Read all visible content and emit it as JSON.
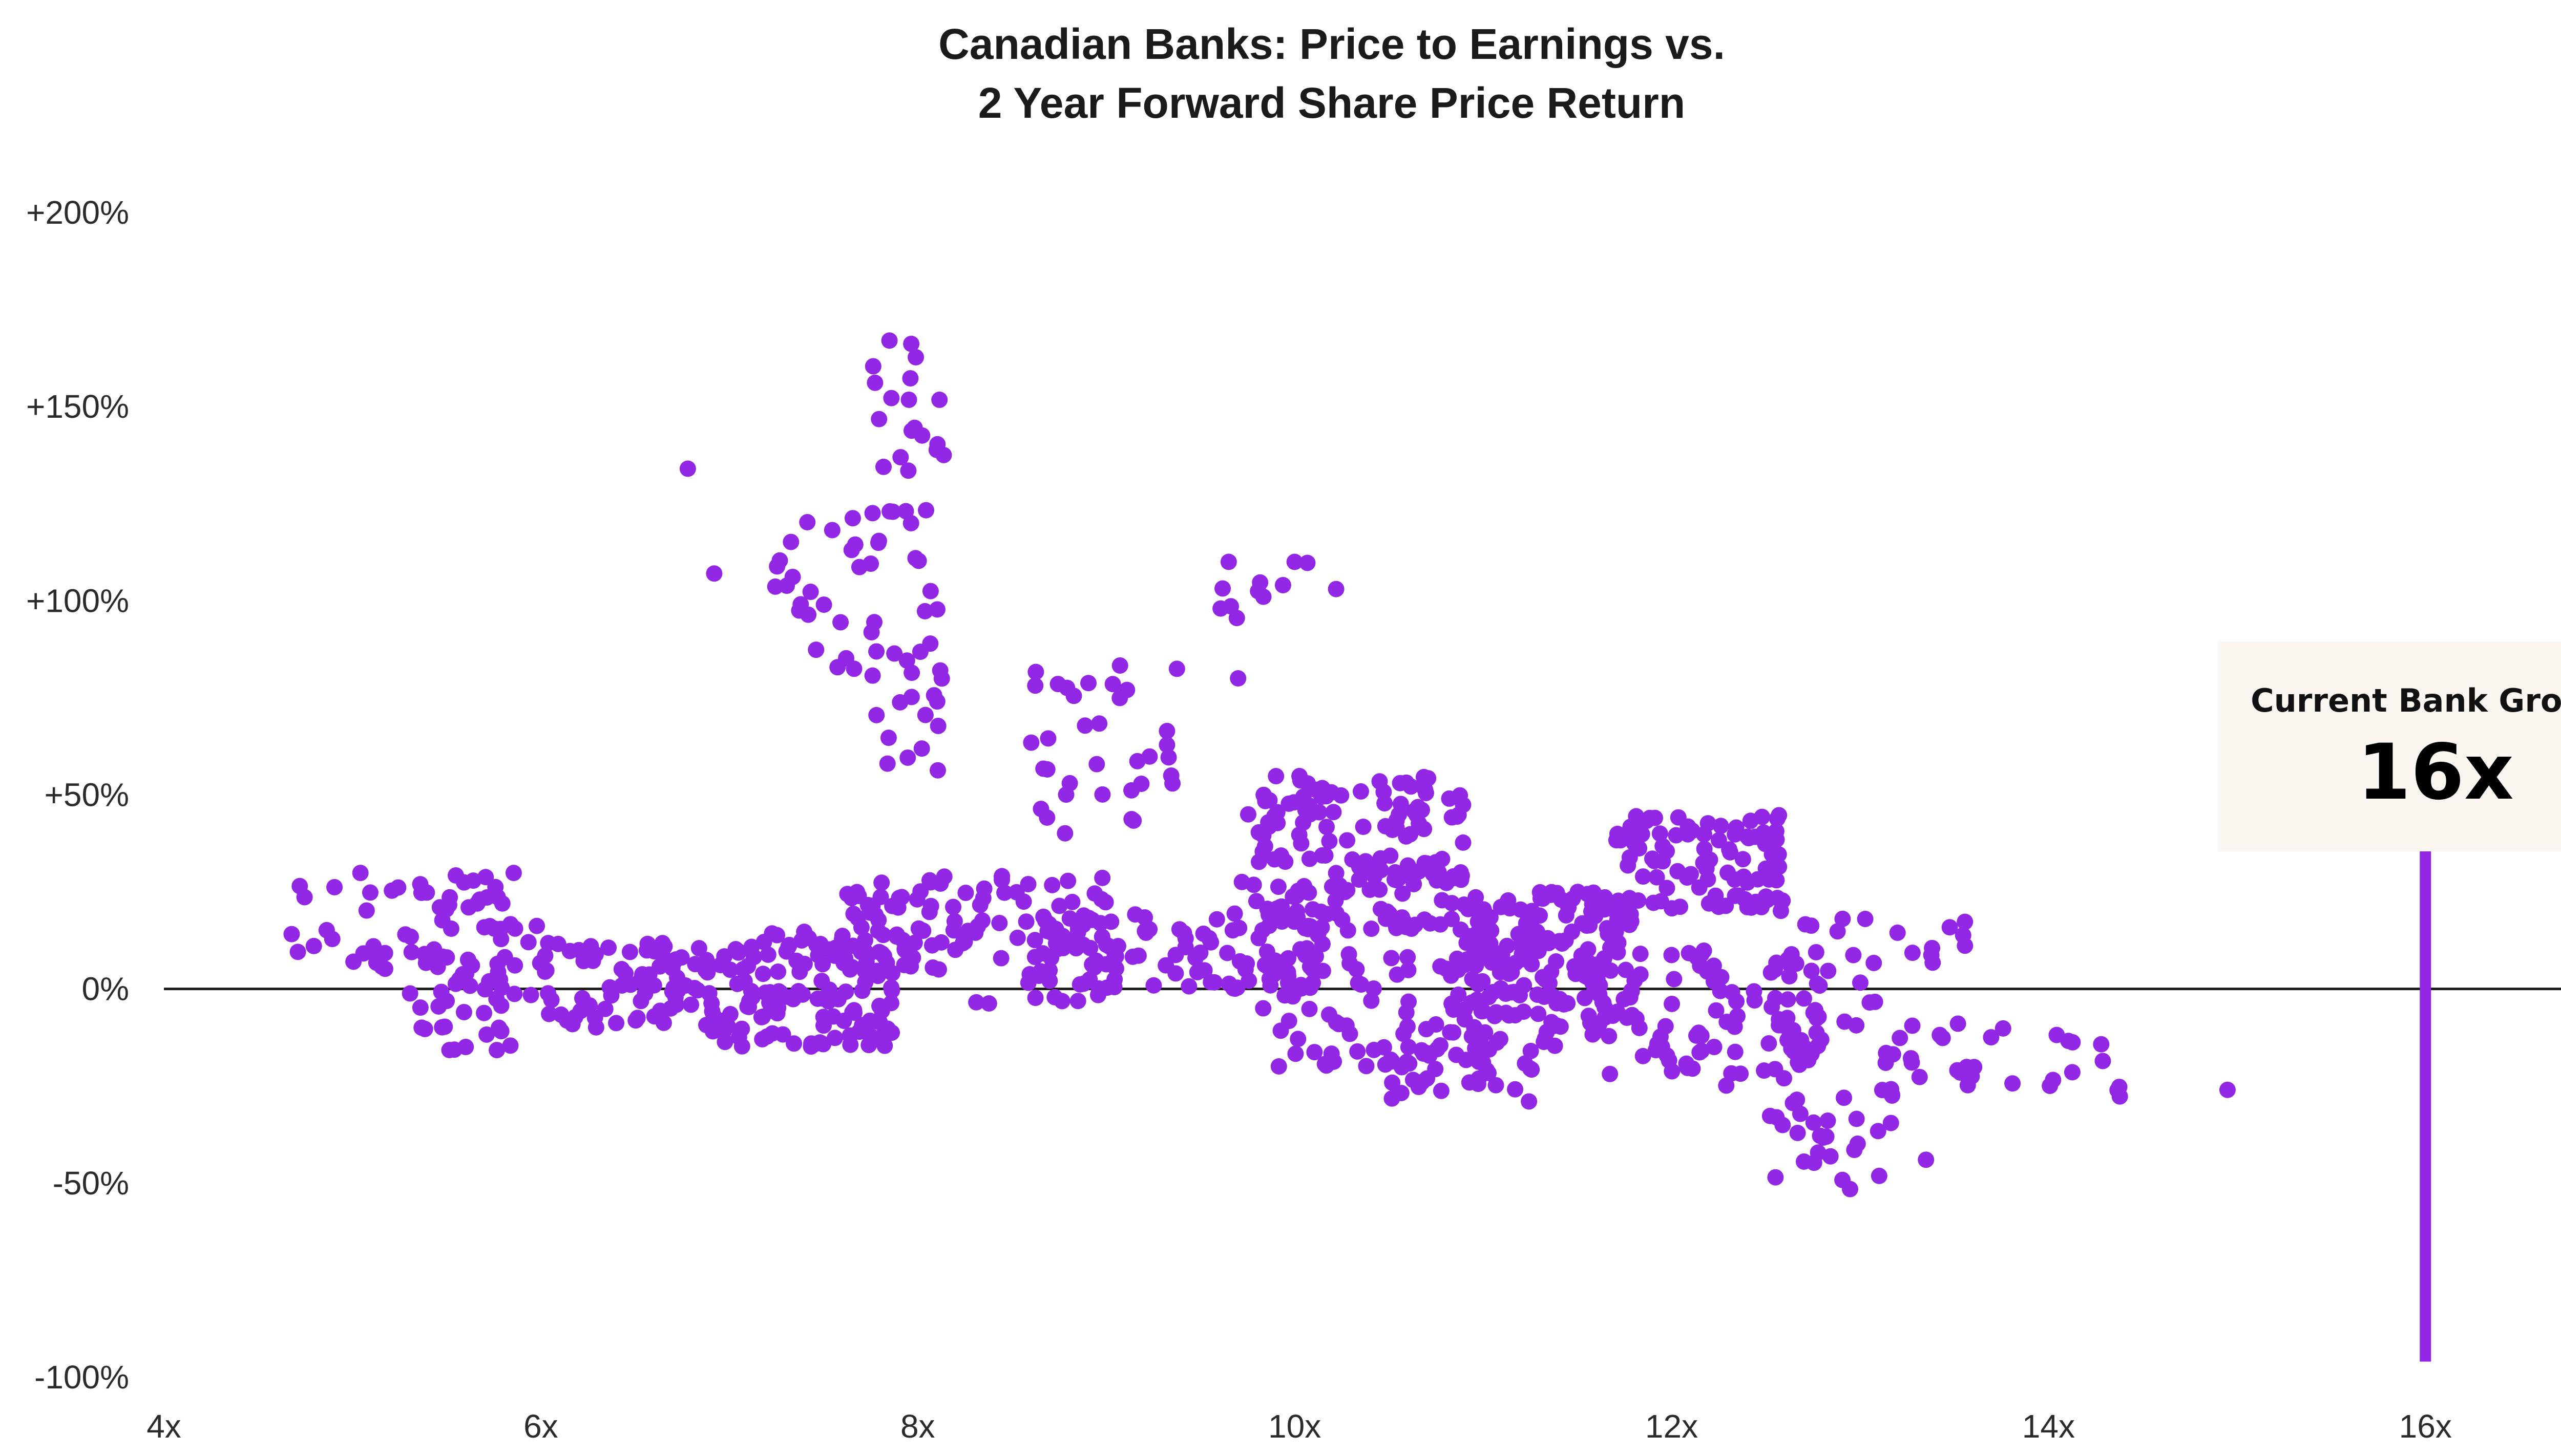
{
  "chart_data": {
    "type": "scatter",
    "title": [
      "Canadian Banks: Price to Earnings vs.",
      "2 Year Forward Share Price Return"
    ],
    "xlabel": "",
    "ylabel": "",
    "xlim": [
      4,
      17.1
    ],
    "ylim": [
      -100,
      200
    ],
    "x_ticks": [
      4,
      6,
      8,
      10,
      12,
      14,
      16
    ],
    "x_tick_labels": [
      "4x",
      "6x",
      "8x",
      "10x",
      "12x",
      "14x",
      "16x"
    ],
    "y_ticks": [
      200,
      150,
      100,
      50,
      0,
      -50,
      -100
    ],
    "y_tick_labels": [
      "+200%",
      "+150%",
      "+100%",
      "+50%",
      "0%",
      "-50%",
      "-100%"
    ],
    "grid": false,
    "zero_line": true,
    "point_color": "#9327E6",
    "reference_line": {
      "x": 16,
      "y_from": -96,
      "y_to": 36,
      "color": "#9327E6"
    },
    "callout": {
      "label": "Current Bank Group:",
      "value": "16x",
      "background": "#FBF6EF"
    },
    "clusters": [
      {
        "x": [
          4.6,
          5.3
        ],
        "y": [
          0,
          30
        ],
        "n": 22
      },
      {
        "x": [
          5.3,
          6.0
        ],
        "y": [
          -16,
          30
        ],
        "n": 80
      },
      {
        "x": [
          6.0,
          6.9
        ],
        "y": [
          -10,
          12
        ],
        "n": 75
      },
      {
        "x": [
          6.9,
          7.9
        ],
        "y": [
          -15,
          15
        ],
        "n": 130
      },
      {
        "x": [
          7.2,
          7.7
        ],
        "y": [
          80,
          125
        ],
        "n": 22
      },
      {
        "x": [
          7.75,
          8.15
        ],
        "y": [
          55,
          170
        ],
        "n": 55
      },
      {
        "x": [
          7.6,
          8.3
        ],
        "y": [
          5,
          30
        ],
        "n": 60
      },
      {
        "x": [
          8.3,
          9.0
        ],
        "y": [
          -5,
          30
        ],
        "n": 60
      },
      {
        "x": [
          8.6,
          9.4
        ],
        "y": [
          40,
          85
        ],
        "n": 35
      },
      {
        "x": [
          8.8,
          10.2
        ],
        "y": [
          0,
          20
        ],
        "n": 90
      },
      {
        "x": [
          9.6,
          10.1
        ],
        "y": [
          95,
          112
        ],
        "n": 9
      },
      {
        "x": [
          9.7,
          10.9
        ],
        "y": [
          15,
          55
        ],
        "n": 170
      },
      {
        "x": [
          9.8,
          10.9
        ],
        "y": [
          -20,
          10
        ],
        "n": 70
      },
      {
        "x": [
          10.5,
          11.4
        ],
        "y": [
          -30,
          -10
        ],
        "n": 45
      },
      {
        "x": [
          10.9,
          11.8
        ],
        "y": [
          -10,
          25
        ],
        "n": 170
      },
      {
        "x": [
          11.7,
          12.6
        ],
        "y": [
          20,
          45
        ],
        "n": 95
      },
      {
        "x": [
          11.5,
          12.8
        ],
        "y": [
          -25,
          10
        ],
        "n": 100
      },
      {
        "x": [
          12.5,
          13.2
        ],
        "y": [
          -52,
          -25
        ],
        "n": 30
      },
      {
        "x": [
          12.6,
          13.6
        ],
        "y": [
          -25,
          20
        ],
        "n": 45
      },
      {
        "x": [
          13.6,
          14.4
        ],
        "y": [
          -28,
          -10
        ],
        "n": 15
      },
      {
        "x": [
          14.95,
          14.95
        ],
        "y": [
          -26,
          -26
        ],
        "n": 1
      }
    ],
    "extra_points": [
      {
        "x": 6.78,
        "y": 134
      },
      {
        "x": 6.92,
        "y": 107
      },
      {
        "x": 9.65,
        "y": 110
      },
      {
        "x": 10.22,
        "y": 103
      },
      {
        "x": 10.0,
        "y": 110
      },
      {
        "x": 7.85,
        "y": 167
      },
      {
        "x": 13.35,
        "y": -44
      },
      {
        "x": 9.7,
        "y": 80
      }
    ]
  }
}
